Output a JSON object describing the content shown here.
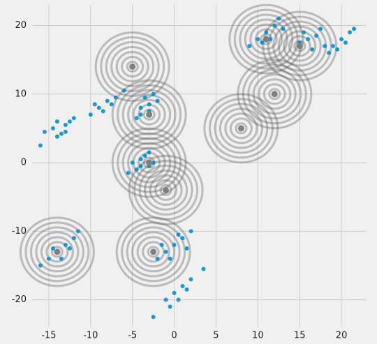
{
  "chart_data": {
    "type": "scatter",
    "xlim": [
      -17,
      23
    ],
    "ylim": [
      -24,
      23
    ],
    "xticks": [
      -15,
      -10,
      -5,
      0,
      5,
      10,
      15,
      20
    ],
    "yticks": [
      -20,
      -10,
      0,
      10,
      20
    ],
    "grid": true,
    "series": [
      {
        "color": "#008fd5",
        "x": [
          -15.5,
          -14,
          -13,
          -12.5,
          -13.5,
          -14.5,
          -12,
          -16,
          -13,
          -14,
          -10,
          -9,
          -8,
          -7,
          -6,
          -8.5,
          -7.5,
          -9.5,
          -4,
          -3,
          -3.5,
          -2.5,
          -4.5,
          -3,
          -2,
          -4,
          -5,
          -4,
          -3,
          -4.5,
          -3.5,
          -2.5,
          -5.5,
          -3,
          -4,
          -2,
          -1,
          0,
          1,
          1.5,
          -1.5,
          0.5,
          -0.5,
          2,
          -1,
          0,
          1,
          2,
          -0.5,
          0.5,
          1.5,
          -2.5,
          3.5,
          -16,
          -15,
          -14,
          -13,
          -12,
          -14.5,
          -13.5,
          -12.5,
          -11.5,
          9,
          10,
          11,
          12,
          12.5,
          10.5,
          11.5,
          13,
          15,
          16,
          17,
          18,
          16.5,
          15.5,
          17.5,
          18.5,
          19,
          20,
          21,
          19.5,
          20.5,
          21.5
        ],
        "y": [
          4.5,
          3.8,
          5.5,
          6,
          4.2,
          5,
          6.5,
          2.5,
          4.5,
          6,
          7,
          8,
          9,
          9.5,
          10.5,
          7.5,
          8.5,
          8.5,
          7,
          8.5,
          9.5,
          10,
          6.5,
          7.5,
          9,
          8,
          0,
          0.5,
          -0.5,
          -1,
          1,
          0,
          -1.5,
          1.5,
          -0.5,
          -14,
          -13,
          -12,
          -11,
          -12.5,
          -12,
          -10.5,
          -14,
          -10,
          -20,
          -19,
          -18,
          -17,
          -21,
          -20,
          -18.5,
          -22.5,
          -15.5,
          -15,
          -14,
          -13,
          -12,
          -11,
          -12.5,
          -14,
          -12.5,
          -10,
          17,
          18,
          19,
          20,
          21,
          17.5,
          18,
          19.5,
          17.5,
          18,
          18.5,
          17,
          16.5,
          19,
          19.5,
          16,
          17,
          18,
          19,
          16.5,
          17.5,
          19.5
        ]
      },
      {
        "color": "#808080",
        "x": [
          -5,
          -3,
          -3,
          -1,
          -2.5,
          -14,
          8,
          12,
          11,
          15
        ],
        "y": [
          14,
          7,
          0,
          -4,
          -13,
          -13,
          5,
          10,
          18,
          17
        ]
      }
    ]
  }
}
